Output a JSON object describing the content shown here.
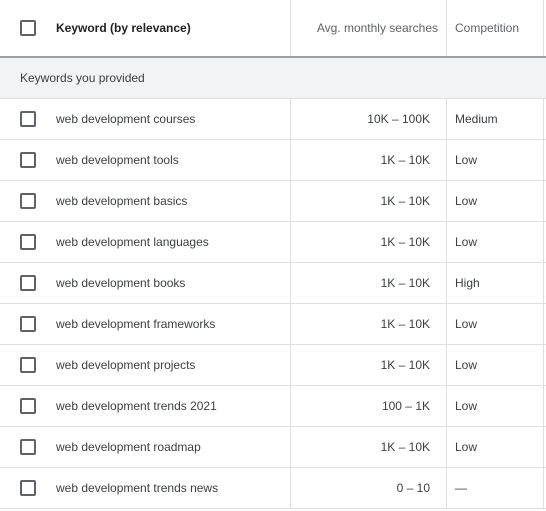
{
  "header": {
    "keyword": "Keyword (by relevance)",
    "searches": "Avg. monthly searches",
    "competition": "Competition"
  },
  "section": "Keywords you provided",
  "rows": [
    [
      "web development courses",
      "10K – 100K",
      "Medium"
    ],
    [
      "web development tools",
      "1K – 10K",
      "Low"
    ],
    [
      "web development basics",
      "1K – 10K",
      "Low"
    ],
    [
      "web development languages",
      "1K – 10K",
      "Low"
    ],
    [
      "web development books",
      "1K – 10K",
      "High"
    ],
    [
      "web development frameworks",
      "1K – 10K",
      "Low"
    ],
    [
      "web development projects",
      "1K – 10K",
      "Low"
    ],
    [
      "web development trends 2021",
      "100 – 1K",
      "Low"
    ],
    [
      "web development roadmap",
      "1K – 10K",
      "Low"
    ],
    [
      "web development trends news",
      "0 – 10",
      "—"
    ]
  ]
}
